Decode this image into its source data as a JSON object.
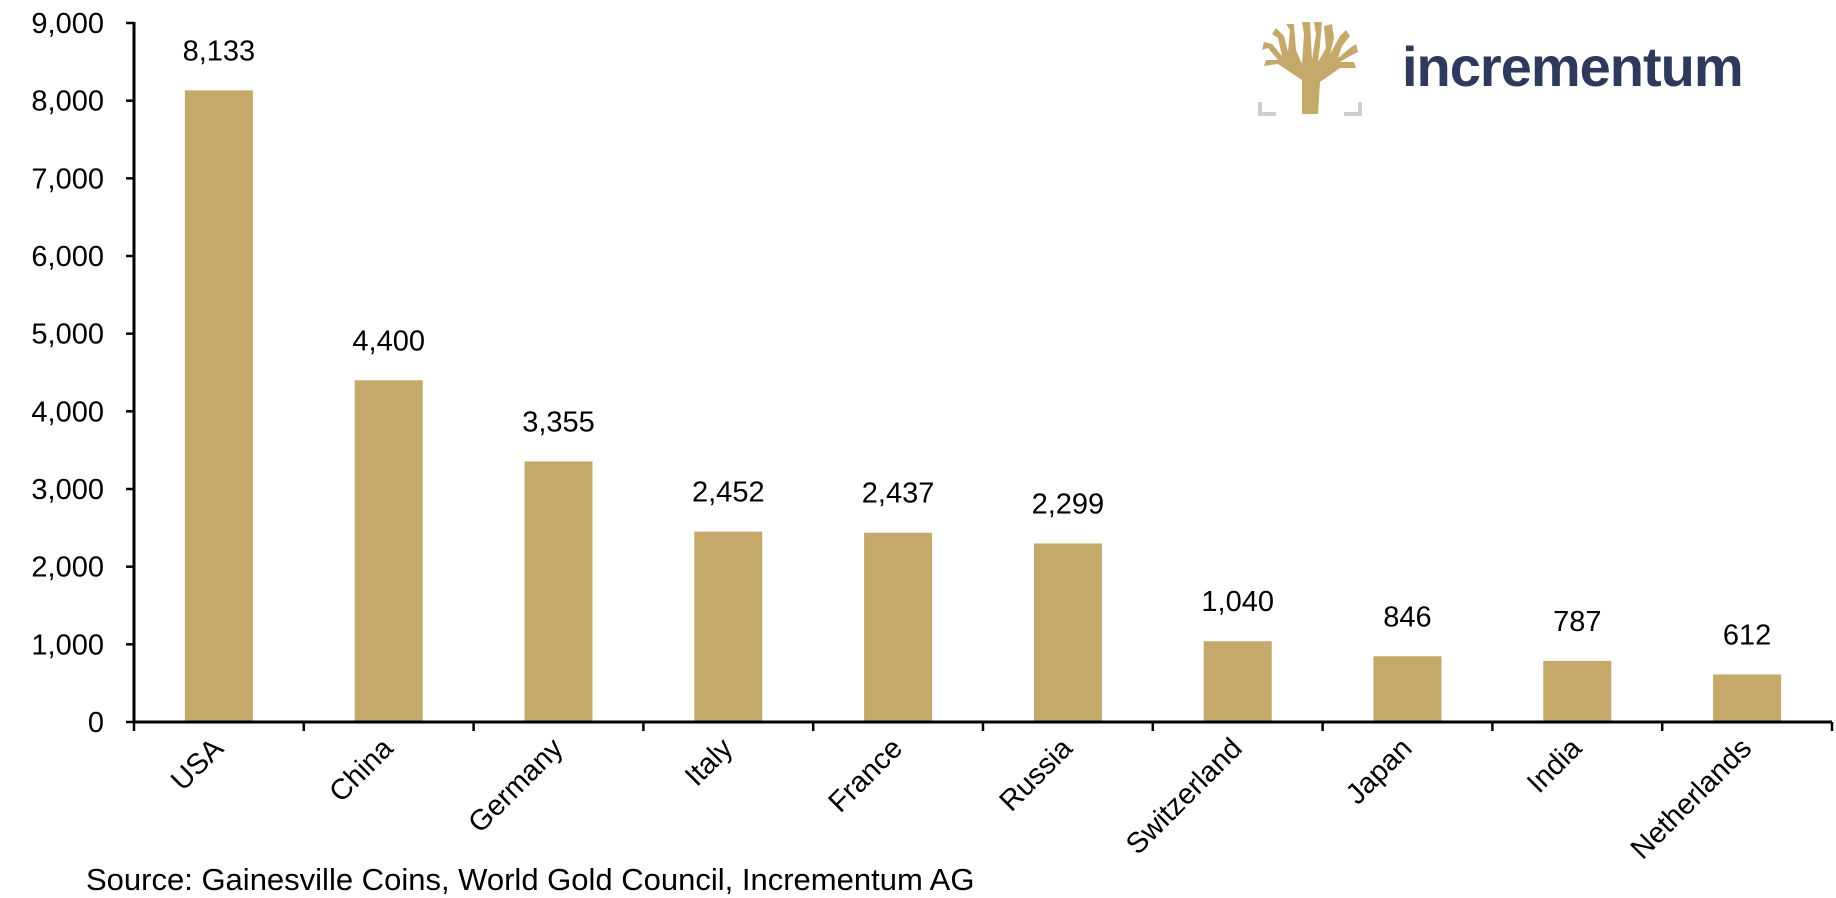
{
  "chart_data": {
    "type": "bar",
    "categories": [
      "USA",
      "China",
      "Germany",
      "Italy",
      "France",
      "Russia",
      "Switzerland",
      "Japan",
      "India",
      "Netherlands"
    ],
    "values": [
      8133,
      4400,
      3355,
      2452,
      2437,
      2299,
      1040,
      846,
      787,
      612
    ],
    "data_labels": [
      "8,133",
      "4,400",
      "3,355",
      "2,452",
      "2,437",
      "2,299",
      "1,040",
      "846",
      "787",
      "612"
    ],
    "yticks": [
      "0",
      "1,000",
      "2,000",
      "3,000",
      "4,000",
      "5,000",
      "6,000",
      "7,000",
      "8,000",
      "9,000"
    ],
    "ylim": [
      0,
      9000
    ],
    "grid": false,
    "bar_color": "#c4a96b"
  },
  "source": "Source: Gainesville Coins, World Gold Council, Incrementum AG",
  "logo": {
    "text": "incrementum",
    "icon": "tree-icon",
    "color": "#2e3a5c",
    "icon_color": "#c4a96b"
  }
}
